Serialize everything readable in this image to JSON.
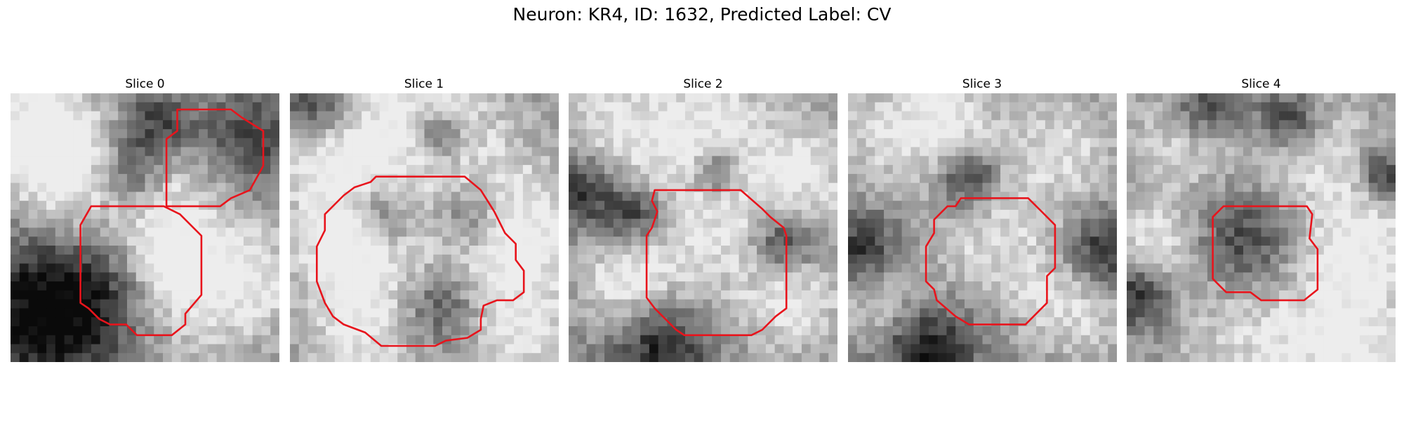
{
  "figure": {
    "title": "Neuron: KR4, ID: 1632, Predicted Label: CV",
    "contour_color": "#e8141c",
    "colormap": "gray"
  },
  "slices": [
    {
      "title": "Slice 0",
      "bright_spots": [
        [
          0.68,
          0.28,
          0.2
        ],
        [
          0.42,
          0.48,
          0.22
        ],
        [
          0.6,
          0.65,
          0.1
        ],
        [
          0.9,
          0.7,
          0.16
        ],
        [
          0.15,
          0.3,
          0.18
        ],
        [
          0.1,
          0.1,
          0.15
        ],
        [
          0.55,
          0.85,
          0.2
        ]
      ],
      "dark_spots": [
        [
          0.12,
          0.8,
          0.22
        ],
        [
          0.35,
          0.75,
          0.2
        ],
        [
          0.85,
          0.2,
          0.15
        ],
        [
          0.55,
          0.12,
          0.1
        ],
        [
          0.45,
          0.3,
          0.1
        ]
      ],
      "contours": [
        [
          [
            0.62,
            0.06
          ],
          [
            0.82,
            0.06
          ],
          [
            0.86,
            0.09
          ],
          [
            0.94,
            0.14
          ],
          [
            0.94,
            0.27
          ],
          [
            0.89,
            0.36
          ],
          [
            0.82,
            0.39
          ],
          [
            0.78,
            0.42
          ],
          [
            0.76,
            0.42
          ],
          [
            0.58,
            0.42
          ],
          [
            0.58,
            0.17
          ],
          [
            0.62,
            0.14
          ]
        ],
        [
          [
            0.3,
            0.42
          ],
          [
            0.57,
            0.42
          ],
          [
            0.63,
            0.45
          ],
          [
            0.71,
            0.53
          ],
          [
            0.71,
            0.75
          ],
          [
            0.65,
            0.82
          ],
          [
            0.65,
            0.86
          ],
          [
            0.6,
            0.9
          ],
          [
            0.47,
            0.9
          ],
          [
            0.43,
            0.86
          ],
          [
            0.37,
            0.86
          ],
          [
            0.33,
            0.84
          ],
          [
            0.29,
            0.8
          ],
          [
            0.26,
            0.78
          ],
          [
            0.26,
            0.49
          ]
        ]
      ]
    },
    {
      "title": "Slice 1",
      "bright_spots": [
        [
          0.5,
          0.47,
          0.28
        ],
        [
          0.2,
          0.55,
          0.15
        ],
        [
          0.85,
          0.5,
          0.18
        ],
        [
          0.5,
          0.08,
          0.2
        ],
        [
          0.15,
          0.2,
          0.15
        ],
        [
          0.3,
          0.9,
          0.18
        ],
        [
          0.85,
          0.9,
          0.16
        ]
      ],
      "dark_spots": [
        [
          0.35,
          0.45,
          0.1
        ],
        [
          0.66,
          0.45,
          0.1
        ],
        [
          0.55,
          0.8,
          0.12
        ],
        [
          0.1,
          0.05,
          0.1
        ],
        [
          0.55,
          0.16,
          0.08
        ]
      ],
      "contours": [
        [
          [
            0.27,
            0.34
          ],
          [
            0.3,
            0.33
          ],
          [
            0.32,
            0.31
          ],
          [
            0.65,
            0.31
          ],
          [
            0.71,
            0.36
          ],
          [
            0.76,
            0.44
          ],
          [
            0.8,
            0.52
          ],
          [
            0.84,
            0.56
          ],
          [
            0.84,
            0.62
          ],
          [
            0.87,
            0.66
          ],
          [
            0.87,
            0.74
          ],
          [
            0.83,
            0.77
          ],
          [
            0.77,
            0.77
          ],
          [
            0.72,
            0.79
          ],
          [
            0.71,
            0.84
          ],
          [
            0.71,
            0.88
          ],
          [
            0.66,
            0.91
          ],
          [
            0.58,
            0.92
          ],
          [
            0.54,
            0.94
          ],
          [
            0.34,
            0.94
          ],
          [
            0.28,
            0.89
          ],
          [
            0.2,
            0.86
          ],
          [
            0.16,
            0.83
          ],
          [
            0.13,
            0.78
          ],
          [
            0.1,
            0.7
          ],
          [
            0.1,
            0.57
          ],
          [
            0.13,
            0.51
          ],
          [
            0.13,
            0.45
          ],
          [
            0.2,
            0.38
          ],
          [
            0.24,
            0.35
          ]
        ]
      ]
    },
    {
      "title": "Slice 2",
      "bright_spots": [
        [
          0.5,
          0.52,
          0.22
        ],
        [
          0.5,
          0.08,
          0.18
        ],
        [
          0.15,
          0.15,
          0.15
        ],
        [
          0.88,
          0.3,
          0.16
        ],
        [
          0.2,
          0.7,
          0.12
        ],
        [
          0.85,
          0.8,
          0.14
        ]
      ],
      "dark_spots": [
        [
          0.05,
          0.35,
          0.1
        ],
        [
          0.35,
          0.95,
          0.12
        ],
        [
          0.55,
          0.3,
          0.06
        ],
        [
          0.8,
          0.55,
          0.08
        ],
        [
          0.25,
          0.45,
          0.08
        ]
      ],
      "contours": [
        [
          [
            0.32,
            0.36
          ],
          [
            0.64,
            0.36
          ],
          [
            0.72,
            0.43
          ],
          [
            0.75,
            0.46
          ],
          [
            0.8,
            0.5
          ],
          [
            0.81,
            0.53
          ],
          [
            0.81,
            0.8
          ],
          [
            0.77,
            0.83
          ],
          [
            0.72,
            0.88
          ],
          [
            0.68,
            0.9
          ],
          [
            0.43,
            0.9
          ],
          [
            0.4,
            0.88
          ],
          [
            0.32,
            0.8
          ],
          [
            0.29,
            0.76
          ],
          [
            0.29,
            0.53
          ],
          [
            0.31,
            0.5
          ],
          [
            0.33,
            0.44
          ],
          [
            0.31,
            0.4
          ]
        ]
      ]
    },
    {
      "title": "Slice 3",
      "bright_spots": [
        [
          0.55,
          0.55,
          0.18
        ],
        [
          0.15,
          0.15,
          0.15
        ],
        [
          0.8,
          0.2,
          0.15
        ],
        [
          0.1,
          0.75,
          0.12
        ],
        [
          0.85,
          0.8,
          0.14
        ],
        [
          0.4,
          0.1,
          0.12
        ]
      ],
      "dark_spots": [
        [
          0.3,
          0.95,
          0.12
        ],
        [
          0.05,
          0.6,
          0.1
        ],
        [
          0.95,
          0.6,
          0.1
        ],
        [
          0.45,
          0.32,
          0.08
        ]
      ],
      "contours": [
        [
          [
            0.42,
            0.39
          ],
          [
            0.67,
            0.39
          ],
          [
            0.72,
            0.44
          ],
          [
            0.77,
            0.49
          ],
          [
            0.77,
            0.65
          ],
          [
            0.74,
            0.68
          ],
          [
            0.74,
            0.78
          ],
          [
            0.7,
            0.82
          ],
          [
            0.66,
            0.86
          ],
          [
            0.45,
            0.86
          ],
          [
            0.4,
            0.83
          ],
          [
            0.33,
            0.77
          ],
          [
            0.32,
            0.73
          ],
          [
            0.29,
            0.7
          ],
          [
            0.29,
            0.57
          ],
          [
            0.32,
            0.52
          ],
          [
            0.32,
            0.47
          ],
          [
            0.37,
            0.42
          ],
          [
            0.4,
            0.42
          ]
        ]
      ]
    },
    {
      "title": "Slice 4",
      "bright_spots": [
        [
          0.2,
          0.15,
          0.15
        ],
        [
          0.7,
          0.25,
          0.2
        ],
        [
          0.5,
          0.85,
          0.25
        ],
        [
          0.9,
          0.6,
          0.15
        ],
        [
          0.1,
          0.55,
          0.12
        ],
        [
          0.85,
          0.95,
          0.15
        ]
      ],
      "dark_spots": [
        [
          0.45,
          0.55,
          0.14
        ],
        [
          0.3,
          0.05,
          0.1
        ],
        [
          0.6,
          0.1,
          0.08
        ],
        [
          0.05,
          0.75,
          0.08
        ],
        [
          0.95,
          0.3,
          0.06
        ]
      ],
      "contours": [
        [
          [
            0.36,
            0.42
          ],
          [
            0.67,
            0.42
          ],
          [
            0.69,
            0.45
          ],
          [
            0.68,
            0.54
          ],
          [
            0.71,
            0.58
          ],
          [
            0.71,
            0.73
          ],
          [
            0.66,
            0.77
          ],
          [
            0.5,
            0.77
          ],
          [
            0.46,
            0.74
          ],
          [
            0.37,
            0.74
          ],
          [
            0.35,
            0.72
          ],
          [
            0.32,
            0.69
          ],
          [
            0.32,
            0.46
          ]
        ]
      ]
    }
  ]
}
